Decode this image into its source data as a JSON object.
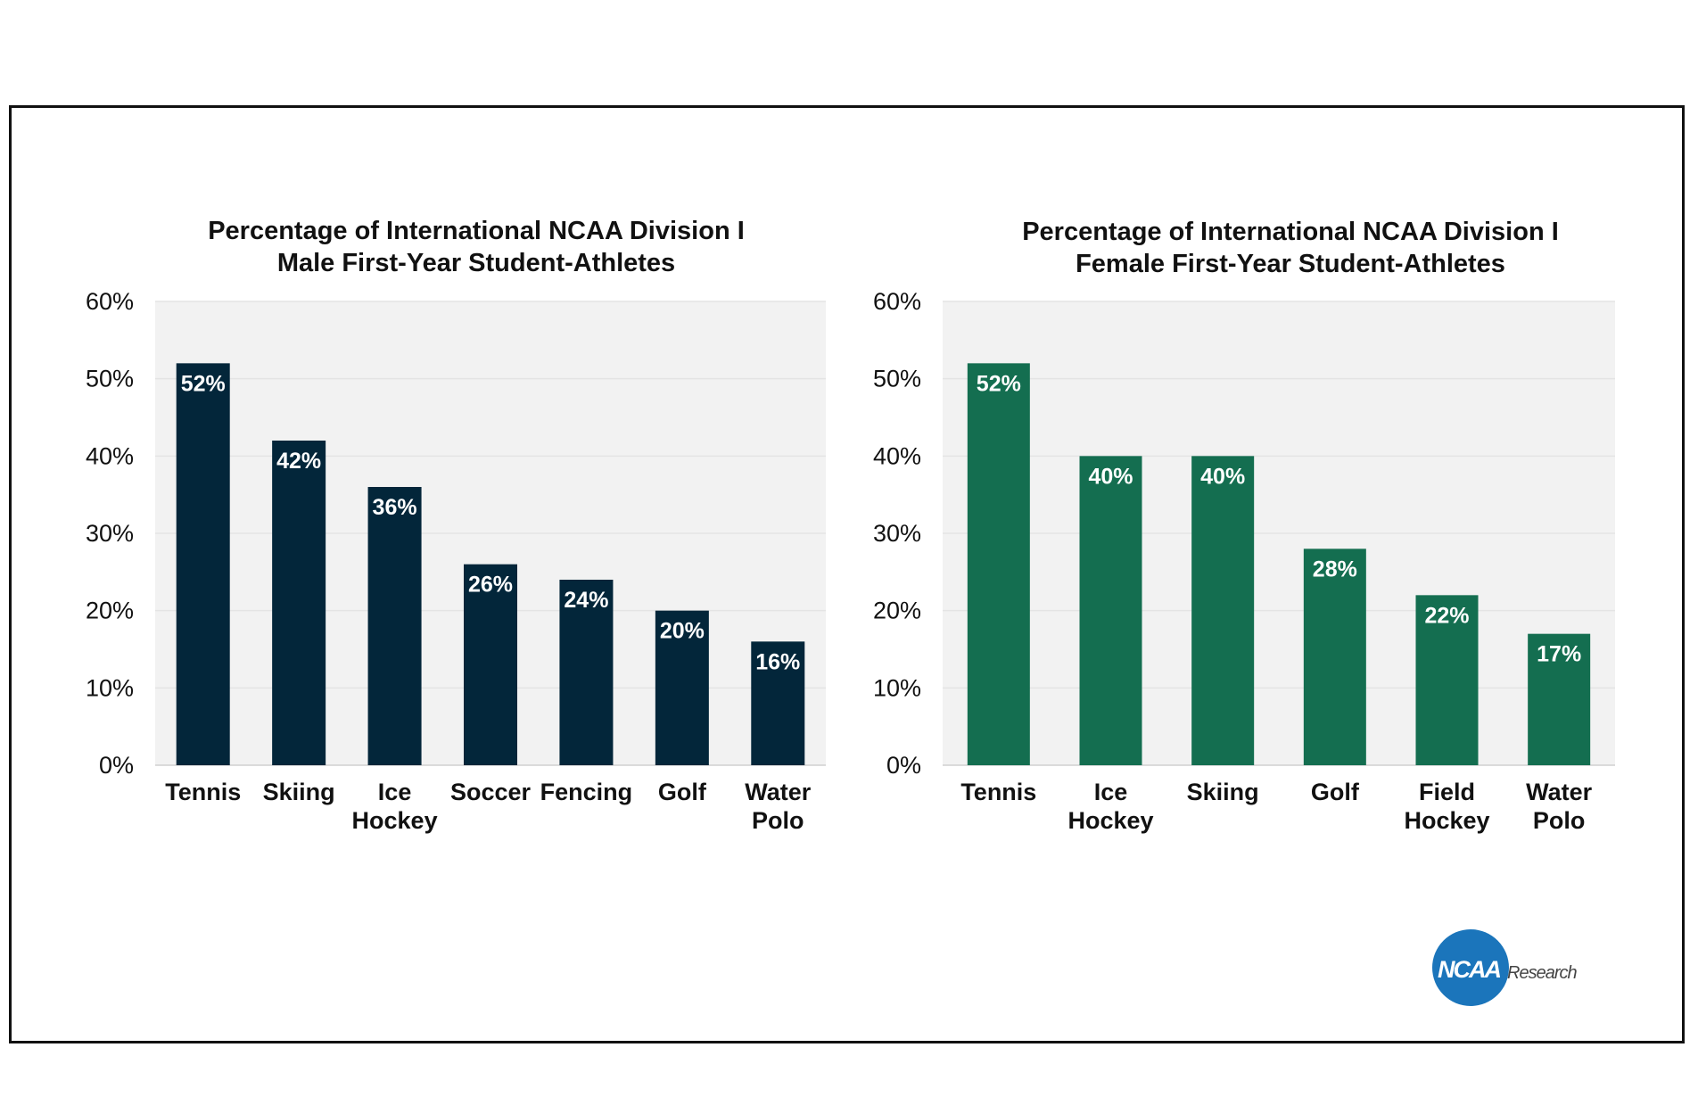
{
  "chart_data": [
    {
      "type": "bar",
      "title": [
        "Percentage of International NCAA Division I",
        "Male First-Year Student-Athletes"
      ],
      "categories": [
        [
          "Tennis"
        ],
        [
          "Skiing"
        ],
        [
          "Ice",
          "Hockey"
        ],
        [
          "Soccer"
        ],
        [
          "Fencing"
        ],
        [
          "Golf"
        ],
        [
          "Water",
          "Polo"
        ]
      ],
      "values": [
        52,
        42,
        36,
        26,
        24,
        20,
        16
      ],
      "value_labels": [
        "52%",
        "42%",
        "36%",
        "26%",
        "24%",
        "20%",
        "16%"
      ],
      "yticks": [
        "0%",
        "10%",
        "20%",
        "30%",
        "40%",
        "50%",
        "60%"
      ],
      "ylim": [
        0,
        60
      ],
      "grid": true,
      "legend": "none",
      "color": "#03263a",
      "background": "#f2f2f2"
    },
    {
      "type": "bar",
      "title": [
        "Percentage of International NCAA Division I",
        "Female First-Year Student-Athletes"
      ],
      "categories": [
        [
          "Tennis"
        ],
        [
          "Ice",
          "Hockey"
        ],
        [
          "Skiing"
        ],
        [
          "Golf"
        ],
        [
          "Field",
          "Hockey"
        ],
        [
          "Water",
          "Polo"
        ]
      ],
      "values": [
        52,
        40,
        40,
        28,
        22,
        17
      ],
      "value_labels": [
        "52%",
        "40%",
        "40%",
        "28%",
        "22%",
        "17%"
      ],
      "yticks": [
        "0%",
        "10%",
        "20%",
        "30%",
        "40%",
        "50%",
        "60%"
      ],
      "ylim": [
        0,
        60
      ],
      "grid": true,
      "legend": "none",
      "color": "#146e50",
      "background": "#f2f2f2"
    }
  ],
  "logo": {
    "word": "NCAA",
    "sub": "Research",
    "circle_color": "#1b75bb"
  }
}
